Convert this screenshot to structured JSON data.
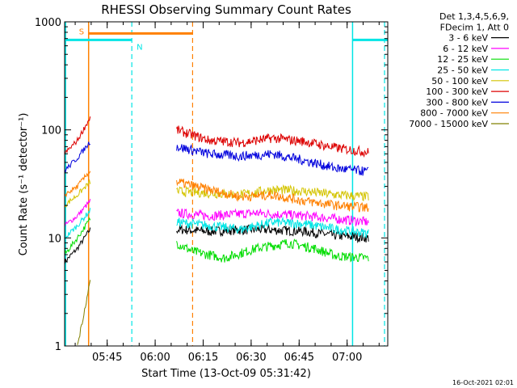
{
  "chart_data": {
    "type": "line",
    "title": "RHESSI Observing Summary Count Rates",
    "xlabel": "Start Time (13-Oct-09 05:31:42)",
    "ylabel": "Count Rate (s⁻¹ detector⁻¹)",
    "y_scale": "log",
    "ylim": [
      1,
      1000
    ],
    "y_ticks": [
      {
        "value": 1,
        "label": "1"
      },
      {
        "value": 10,
        "label": "10"
      },
      {
        "value": 100,
        "label": "100"
      },
      {
        "value": 1000,
        "label": "1000"
      }
    ],
    "xlim_min": [
      0,
      101
    ],
    "x_ticks": [
      {
        "value": 13.3,
        "label": "05:45"
      },
      {
        "value": 28.3,
        "label": "06:00"
      },
      {
        "value": 43.3,
        "label": "06:15"
      },
      {
        "value": 58.3,
        "label": "06:30"
      },
      {
        "value": 73.3,
        "label": "06:45"
      },
      {
        "value": 88.3,
        "label": "07:00"
      }
    ],
    "x_units": "minutes after 05:31:42",
    "legend_header": [
      "Det 1,3,4,5,6,9,",
      "FDecim 1, Att 0"
    ],
    "legend_placement": "right",
    "series": [
      {
        "name": "3 - 6 keV",
        "color": "#000000",
        "seg1": [
          [
            0,
            6
          ],
          [
            4,
            8
          ],
          [
            8,
            12
          ]
        ],
        "seg2": [
          [
            35,
            12
          ],
          [
            45,
            11.5
          ],
          [
            60,
            12
          ],
          [
            75,
            11.5
          ],
          [
            85,
            10.5
          ],
          [
            95,
            10
          ]
        ]
      },
      {
        "name": "6 - 12 keV",
        "color": "#ff00ff",
        "seg1": [
          [
            0,
            13
          ],
          [
            4,
            16
          ],
          [
            8,
            22
          ]
        ],
        "seg2": [
          [
            35,
            17
          ],
          [
            45,
            16
          ],
          [
            60,
            17
          ],
          [
            75,
            16
          ],
          [
            85,
            15
          ],
          [
            95,
            14
          ]
        ]
      },
      {
        "name": "12 - 25 keV",
        "color": "#00dd00",
        "seg1": [
          [
            0,
            7
          ],
          [
            4,
            10
          ],
          [
            8,
            15
          ]
        ],
        "seg2": [
          [
            35,
            9
          ],
          [
            40,
            7.5
          ],
          [
            50,
            6.5
          ],
          [
            60,
            8
          ],
          [
            70,
            9
          ],
          [
            78,
            8
          ],
          [
            85,
            6.8
          ],
          [
            95,
            6.5
          ]
        ]
      },
      {
        "name": "25 - 50 keV",
        "color": "#00e5e5",
        "seg1": [
          [
            0,
            10
          ],
          [
            4,
            13
          ],
          [
            8,
            18
          ]
        ],
        "seg2": [
          [
            35,
            14
          ],
          [
            45,
            13
          ],
          [
            55,
            12
          ],
          [
            65,
            14
          ],
          [
            75,
            13.5
          ],
          [
            85,
            12
          ],
          [
            95,
            11
          ]
        ]
      },
      {
        "name": "50 - 100 keV",
        "color": "#d4c400",
        "seg1": [
          [
            0,
            20
          ],
          [
            4,
            25
          ],
          [
            8,
            33
          ]
        ],
        "seg2": [
          [
            35,
            27
          ],
          [
            45,
            26
          ],
          [
            55,
            25
          ],
          [
            65,
            28
          ],
          [
            75,
            27
          ],
          [
            85,
            25
          ],
          [
            95,
            24
          ]
        ]
      },
      {
        "name": "100 - 300 keV",
        "color": "#dd0000",
        "seg1": [
          [
            0,
            60
          ],
          [
            4,
            80
          ],
          [
            8,
            130
          ]
        ],
        "seg2": [
          [
            35,
            100
          ],
          [
            45,
            80
          ],
          [
            55,
            76
          ],
          [
            65,
            84
          ],
          [
            75,
            78
          ],
          [
            85,
            68
          ],
          [
            95,
            62
          ]
        ]
      },
      {
        "name": "300 - 800 keV",
        "color": "#0000dd",
        "seg1": [
          [
            0,
            42
          ],
          [
            4,
            55
          ],
          [
            8,
            78
          ]
        ],
        "seg2": [
          [
            35,
            70
          ],
          [
            45,
            60
          ],
          [
            55,
            57
          ],
          [
            65,
            60
          ],
          [
            75,
            52
          ],
          [
            85,
            44
          ],
          [
            95,
            41
          ]
        ]
      },
      {
        "name": "800 - 7000 keV",
        "color": "#ff8000",
        "seg1": [
          [
            0,
            25
          ],
          [
            4,
            30
          ],
          [
            8,
            42
          ]
        ],
        "seg2": [
          [
            35,
            33
          ],
          [
            45,
            28
          ],
          [
            55,
            24
          ],
          [
            65,
            25
          ],
          [
            75,
            22
          ],
          [
            85,
            20
          ],
          [
            95,
            19
          ]
        ]
      },
      {
        "name": "7000 - 15000 keV",
        "color": "#808000",
        "seg1": [
          [
            4,
            1
          ],
          [
            6,
            2
          ],
          [
            8,
            4
          ]
        ],
        "seg2": []
      }
    ],
    "markers": [
      {
        "label": "S",
        "color": "#ff8000",
        "x_start": 7.5,
        "x_end": 40,
        "bar_y": 780
      },
      {
        "label": "N",
        "color": "#00e5e5",
        "x_start": 0,
        "x_end": 21,
        "bar_y": 680
      },
      {
        "label": "",
        "color": "#00e5e5",
        "x_start": 90,
        "x_end": 101,
        "bar_y": 680
      }
    ],
    "solid_vlines": [
      {
        "x": 0.3,
        "color": "#00e5e5"
      },
      {
        "x": 7.5,
        "color": "#ff8000"
      },
      {
        "x": 90,
        "color": "#00e5e5"
      }
    ],
    "dashed_vlines": [
      {
        "x": 21,
        "color": "#00e5e5"
      },
      {
        "x": 40,
        "color": "#ff8000"
      },
      {
        "x": 100,
        "color": "#00e5e5"
      }
    ]
  },
  "timestamp": "16-Oct-2021 02:01"
}
